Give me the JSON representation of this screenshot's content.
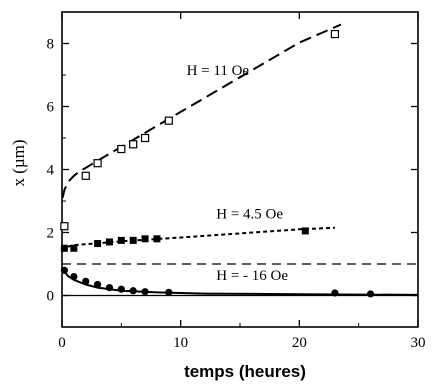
{
  "chart_data": {
    "type": "scatter",
    "xlabel": "temps (heures)",
    "ylabel": "x (µm)",
    "xlim": [
      0,
      30
    ],
    "ylim": [
      -1,
      9
    ],
    "xticks": [
      0,
      10,
      20,
      30
    ],
    "yticks": [
      0,
      2,
      4,
      6,
      8
    ],
    "grid": false,
    "series": [
      {
        "name": "H = 11 Oe",
        "marker": "open-square",
        "points": [
          [
            0.2,
            2.2
          ],
          [
            2,
            3.8
          ],
          [
            3,
            4.2
          ],
          [
            5,
            4.65
          ],
          [
            6,
            4.8
          ],
          [
            7,
            5.0
          ],
          [
            9,
            5.55
          ],
          [
            23,
            8.3
          ]
        ],
        "fit": {
          "style": "long-dash",
          "curve": [
            [
              0.05,
              3.1
            ],
            [
              0.2,
              3.35
            ],
            [
              0.5,
              3.6
            ],
            [
              1,
              3.8
            ],
            [
              1.5,
              3.95
            ],
            [
              2,
              4.05
            ],
            [
              3,
              4.28
            ],
            [
              5,
              4.72
            ],
            [
              10,
              5.83
            ],
            [
              15,
              6.93
            ],
            [
              20,
              8.03
            ],
            [
              23.5,
              8.6
            ]
          ]
        }
      },
      {
        "name": "H = 4.5 Oe",
        "marker": "filled-square",
        "points": [
          [
            0.2,
            1.5
          ],
          [
            1,
            1.5
          ],
          [
            3,
            1.65
          ],
          [
            4,
            1.7
          ],
          [
            5,
            1.75
          ],
          [
            6,
            1.75
          ],
          [
            7,
            1.8
          ],
          [
            8,
            1.8
          ],
          [
            20.5,
            2.05
          ]
        ],
        "fit": {
          "style": "short-dash",
          "curve": [
            [
              0.05,
              1.4
            ],
            [
              0.5,
              1.55
            ],
            [
              1,
              1.6
            ],
            [
              2,
              1.63
            ],
            [
              5,
              1.72
            ],
            [
              10,
              1.84
            ],
            [
              15,
              1.97
            ],
            [
              20,
              2.1
            ],
            [
              23,
              2.15
            ]
          ]
        }
      },
      {
        "name": "H = - 16 Oe",
        "marker": "filled-circle",
        "points": [
          [
            0.2,
            0.8
          ],
          [
            1,
            0.6
          ],
          [
            2,
            0.45
          ],
          [
            3,
            0.35
          ],
          [
            4,
            0.25
          ],
          [
            5,
            0.2
          ],
          [
            6,
            0.15
          ],
          [
            7,
            0.12
          ],
          [
            9,
            0.1
          ],
          [
            23,
            0.08
          ],
          [
            26,
            0.05
          ]
        ],
        "fit": {
          "style": "solid",
          "curve": [
            [
              0.05,
              0.85
            ],
            [
              0.5,
              0.62
            ],
            [
              1,
              0.5
            ],
            [
              2,
              0.35
            ],
            [
              3,
              0.25
            ],
            [
              5,
              0.15
            ],
            [
              8,
              0.1
            ],
            [
              12,
              0.06
            ],
            [
              20,
              0.04
            ],
            [
              30,
              0.02
            ]
          ]
        }
      }
    ],
    "reference_lines": [
      {
        "y": 1.0,
        "style": "dash"
      },
      {
        "y": 0.0,
        "style": "solid"
      }
    ],
    "annotations": [
      {
        "text": "H = 11 Oe",
        "x": 10.5,
        "y": 7.0
      },
      {
        "text": "H = 4.5 Oe",
        "x": 13,
        "y": 2.45
      },
      {
        "text": "H = - 16 Oe",
        "x": 13,
        "y": 0.5
      }
    ]
  }
}
